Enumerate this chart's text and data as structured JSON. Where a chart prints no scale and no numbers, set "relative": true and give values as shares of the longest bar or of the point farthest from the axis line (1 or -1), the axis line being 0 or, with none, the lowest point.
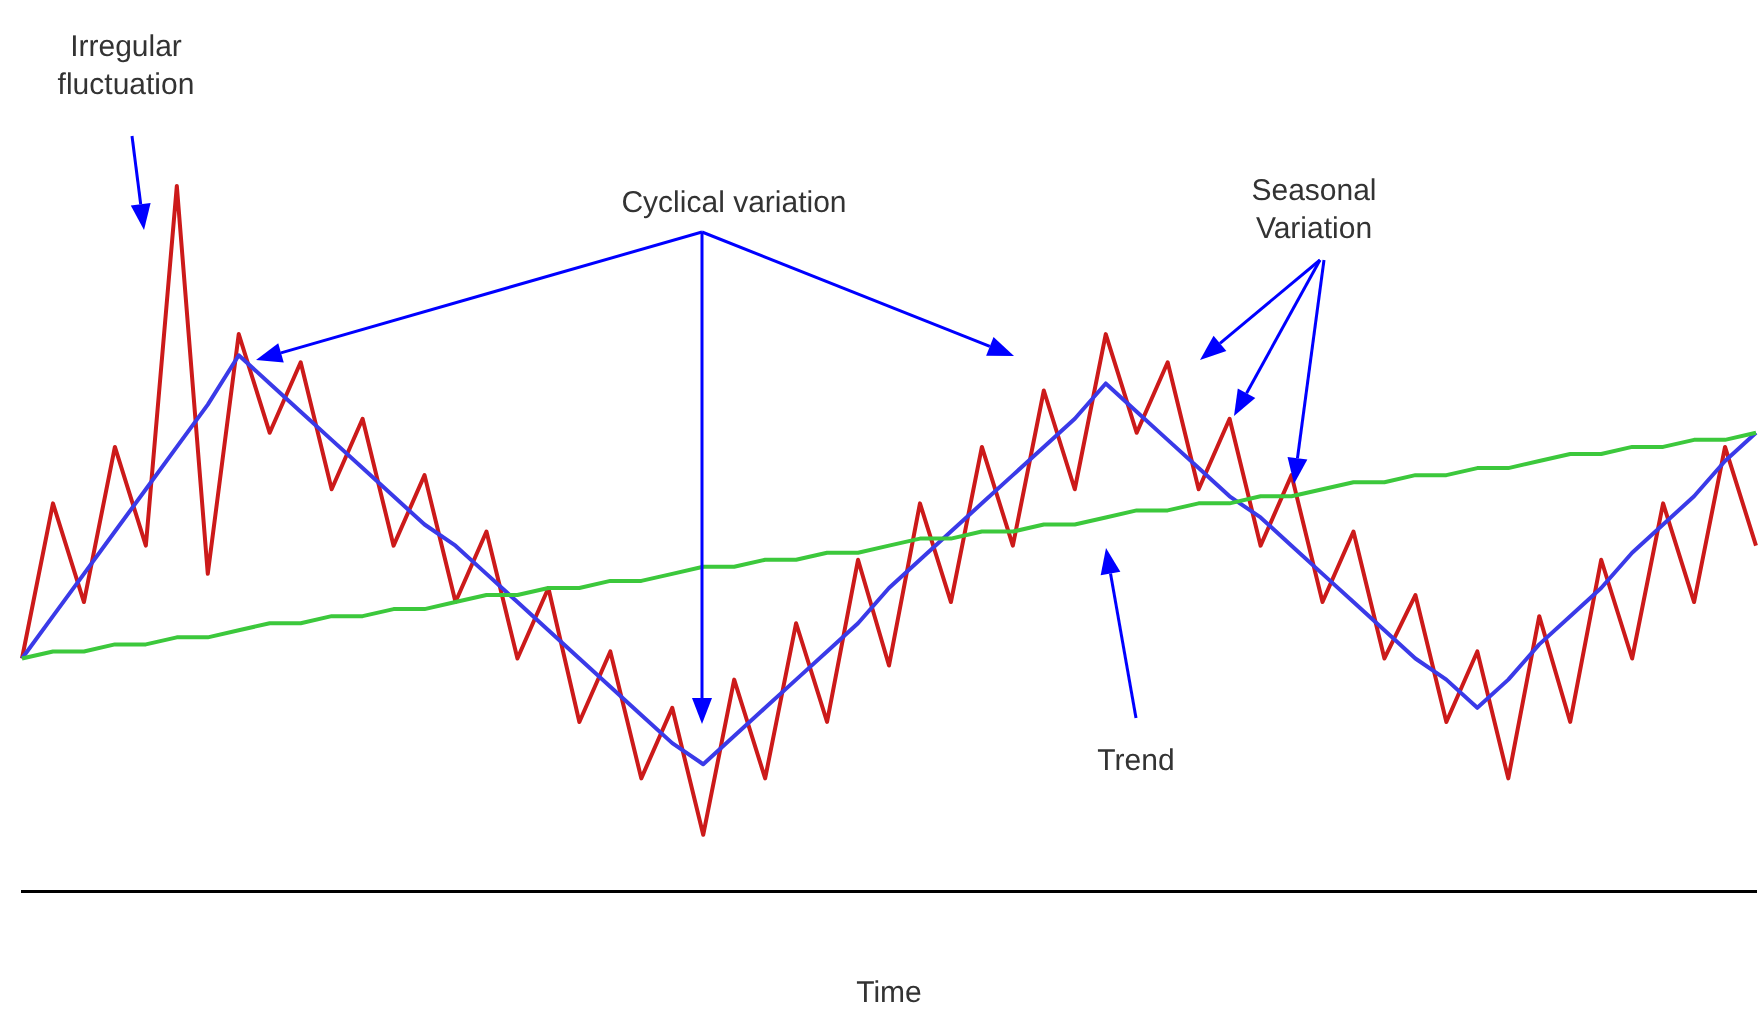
{
  "chart_data": {
    "type": "line",
    "relative": true,
    "marker": "none",
    "xlabel": "Time",
    "annotations": [
      "Irregular fluctuation",
      "Cyclical variation",
      "Seasonal Variation",
      "Trend"
    ],
    "categories": [
      null,
      null,
      null,
      null,
      null,
      null,
      null,
      null,
      null,
      null,
      null,
      null,
      null,
      null,
      null,
      null,
      null,
      null,
      null,
      null,
      null,
      null,
      null,
      null,
      null,
      null,
      null,
      null,
      null,
      null,
      null,
      null,
      null,
      null,
      null,
      null,
      null,
      null,
      null,
      null,
      null,
      null,
      null,
      null,
      null,
      null,
      null,
      null,
      null,
      null,
      null,
      null,
      null,
      null,
      null,
      null,
      null
    ],
    "series": [
      {
        "color": "#3cc83c",
        "values": [
          0.33,
          0.34,
          0.34,
          0.35,
          0.35,
          0.36,
          0.36,
          0.37,
          0.38,
          0.38,
          0.39,
          0.39,
          0.4,
          0.4,
          0.41,
          0.42,
          0.42,
          0.43,
          0.43,
          0.44,
          0.44,
          0.45,
          0.46,
          0.46,
          0.47,
          0.47,
          0.48,
          0.48,
          0.49,
          0.5,
          0.5,
          0.51,
          0.51,
          0.52,
          0.52,
          0.53,
          0.54,
          0.54,
          0.55,
          0.55,
          0.56,
          0.56,
          0.57,
          0.58,
          0.58,
          0.59,
          0.59,
          0.6,
          0.6,
          0.61,
          0.62,
          0.62,
          0.63,
          0.63,
          0.64,
          0.64,
          0.65
        ]
      },
      {
        "color": "#3a3ae8",
        "values": [
          0.33,
          0.39,
          0.45,
          0.51,
          0.57,
          0.63,
          0.69,
          0.76,
          0.72,
          0.68,
          0.64,
          0.6,
          0.56,
          0.52,
          0.49,
          0.45,
          0.41,
          0.37,
          0.33,
          0.29,
          0.25,
          0.21,
          0.18,
          0.22,
          0.26,
          0.3,
          0.34,
          0.38,
          0.43,
          0.47,
          0.51,
          0.55,
          0.59,
          0.63,
          0.67,
          0.72,
          0.68,
          0.64,
          0.6,
          0.56,
          0.53,
          0.49,
          0.45,
          0.41,
          0.37,
          0.33,
          0.3,
          0.26,
          0.3,
          0.35,
          0.39,
          0.43,
          0.48,
          0.52,
          0.56,
          0.61,
          0.65
        ]
      },
      {
        "color": "#cc1a1a",
        "values": [
          0.33,
          0.55,
          0.41,
          0.63,
          0.49,
          1,
          0.45,
          0.79,
          0.65,
          0.75,
          0.57,
          0.67,
          0.49,
          0.59,
          0.41,
          0.51,
          0.33,
          0.43,
          0.24,
          0.34,
          0.16,
          0.26,
          0.08,
          0.3,
          0.16,
          0.38,
          0.24,
          0.47,
          0.32,
          0.55,
          0.41,
          0.63,
          0.49,
          0.71,
          0.57,
          0.79,
          0.65,
          0.75,
          0.57,
          0.67,
          0.49,
          0.59,
          0.41,
          0.51,
          0.33,
          0.42,
          0.24,
          0.34,
          0.16,
          0.39,
          0.24,
          0.47,
          0.33,
          0.55,
          0.41,
          0.63,
          0.49
        ]
      }
    ]
  }
}
